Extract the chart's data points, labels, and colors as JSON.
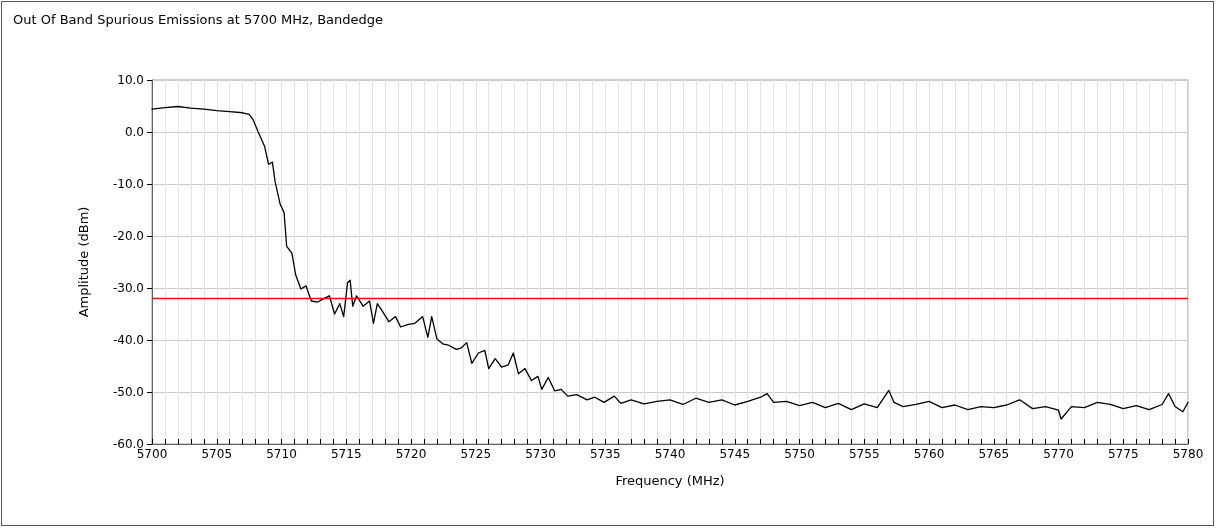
{
  "chart_data": {
    "type": "line",
    "title": "Out Of Band Spurious Emissions at 5700 MHz, Bandedge",
    "xlabel": "Frequency (MHz)",
    "ylabel": "Amplitude (dBm)",
    "series": [
      {
        "color": "#000000",
        "x": [
          5700,
          5701,
          5702,
          5703,
          5704,
          5705,
          5706,
          5707,
          5707.5,
          5707.8,
          5708.2,
          5708.7,
          5709,
          5709.3,
          5709.5,
          5709.9,
          5710.2,
          5710.4,
          5710.8,
          5711.1,
          5711.5,
          5711.9,
          5712.3,
          5712.8,
          5713.3,
          5713.7,
          5714.1,
          5714.5,
          5714.8,
          5715.1,
          5715.3,
          5715.5,
          5715.8,
          5716.3,
          5716.8,
          5717.1,
          5717.4,
          5717.8,
          5718.3,
          5718.8,
          5719.2,
          5719.8,
          5720.3,
          5720.9,
          5721.3,
          5721.6,
          5722,
          5722.5,
          5722.9,
          5723.5,
          5723.9,
          5724.3,
          5724.7,
          5725.2,
          5725.7,
          5726,
          5726.5,
          5727,
          5727.5,
          5727.9,
          5728.3,
          5728.8,
          5729.3,
          5729.8,
          5730.1,
          5730.6,
          5731.1,
          5731.6,
          5732.1,
          5732.8,
          5733.6,
          5734.2,
          5734.9,
          5735.7,
          5736.2,
          5737,
          5738,
          5739,
          5740,
          5741,
          5742,
          5743,
          5744,
          5745,
          5746,
          5747,
          5747.5,
          5748,
          5749,
          5750,
          5751,
          5752,
          5753,
          5754,
          5755,
          5756,
          5756.9,
          5757.3,
          5758,
          5759,
          5760,
          5761,
          5762,
          5763,
          5764,
          5765,
          5766,
          5767,
          5768,
          5769,
          5770,
          5770.2,
          5771,
          5772,
          5773,
          5774,
          5775,
          5776,
          5777,
          5778,
          5778.5,
          5779,
          5779.6,
          5780
        ],
        "values": [
          4.4,
          4.7,
          4.9,
          4.6,
          4.4,
          4.1,
          3.9,
          3.7,
          3.4,
          2.4,
          0,
          -2.8,
          -6.2,
          -5.8,
          -9.5,
          -13.9,
          -15.5,
          -22.0,
          -23.3,
          -27.5,
          -30.2,
          -29.6,
          -32.5,
          -32.7,
          -32.0,
          -31.5,
          -35.0,
          -33.0,
          -35.5,
          -29.0,
          -28.5,
          -33.5,
          -31.5,
          -33.5,
          -32.5,
          -36.8,
          -33.0,
          -34.5,
          -36.5,
          -35.5,
          -37.5,
          -37.0,
          -36.8,
          -35.5,
          -39.5,
          -35.5,
          -39.8,
          -40.8,
          -41.0,
          -41.8,
          -41.5,
          -40.5,
          -44.5,
          -42.5,
          -42.0,
          -45.5,
          -43.6,
          -45.2,
          -44.8,
          -42.5,
          -46.5,
          -45.5,
          -47.8,
          -47.0,
          -49.5,
          -47.2,
          -49.8,
          -49.5,
          -50.8,
          -50.5,
          -51.5,
          -51.0,
          -52.0,
          -50.8,
          -52.2,
          -51.5,
          -52.3,
          -51.8,
          -51.5,
          -52.4,
          -51.2,
          -52.0,
          -51.5,
          -52.5,
          -51.8,
          -51.0,
          -50.3,
          -52.0,
          -51.8,
          -52.6,
          -52.0,
          -53.0,
          -52.2,
          -53.4,
          -52.3,
          -53.0,
          -49.7,
          -52.0,
          -52.8,
          -52.4,
          -51.8,
          -53.0,
          -52.5,
          -53.4,
          -52.8,
          -53.0,
          -52.5,
          -51.5,
          -53.2,
          -52.8,
          -53.5,
          -55.2,
          -52.8,
          -53.0,
          -52.0,
          -52.4,
          -53.2,
          -52.6,
          -53.4,
          -52.4,
          -50.3,
          -52.8,
          -53.8,
          -52.0
        ]
      }
    ],
    "xlim": [
      5700,
      5780
    ],
    "xticks": [
      5700,
      {
        "value": 5701,
        "label": null
      },
      {
        "value": 5702,
        "label": null
      },
      {
        "value": 5703,
        "label": null
      },
      {
        "value": 5704,
        "label": null
      },
      5705,
      {
        "value": 5706,
        "label": null
      },
      {
        "value": 5707,
        "label": null
      },
      {
        "value": 5708,
        "label": null
      },
      {
        "value": 5709,
        "label": null
      },
      5710,
      {
        "value": 5711,
        "label": null
      },
      {
        "value": 5712,
        "label": null
      },
      {
        "value": 5713,
        "label": null
      },
      {
        "value": 5714,
        "label": null
      },
      5715,
      {
        "value": 5716,
        "label": null
      },
      {
        "value": 5717,
        "label": null
      },
      {
        "value": 5718,
        "label": null
      },
      {
        "value": 5719,
        "label": null
      },
      5720,
      {
        "value": 5721,
        "label": null
      },
      {
        "value": 5722,
        "label": null
      },
      {
        "value": 5723,
        "label": null
      },
      {
        "value": 5724,
        "label": null
      },
      5725,
      {
        "value": 5726,
        "label": null
      },
      {
        "value": 5727,
        "label": null
      },
      {
        "value": 5728,
        "label": null
      },
      {
        "value": 5729,
        "label": null
      },
      5730,
      {
        "value": 5731,
        "label": null
      },
      {
        "value": 5732,
        "label": null
      },
      {
        "value": 5733,
        "label": null
      },
      {
        "value": 5734,
        "label": null
      },
      5735,
      {
        "value": 5736,
        "label": null
      },
      {
        "value": 5737,
        "label": null
      },
      {
        "value": 5738,
        "label": null
      },
      {
        "value": 5739,
        "label": null
      },
      5740,
      {
        "value": 5741,
        "label": null
      },
      {
        "value": 5742,
        "label": null
      },
      {
        "value": 5743,
        "label": null
      },
      {
        "value": 5744,
        "label": null
      },
      5745,
      {
        "value": 5746,
        "label": null
      },
      {
        "value": 5747,
        "label": null
      },
      {
        "value": 5748,
        "label": null
      },
      {
        "value": 5749,
        "label": null
      },
      5750,
      {
        "value": 5751,
        "label": null
      },
      {
        "value": 5752,
        "label": null
      },
      {
        "value": 5753,
        "label": null
      },
      {
        "value": 5754,
        "label": null
      },
      5755,
      {
        "value": 5756,
        "label": null
      },
      {
        "value": 5757,
        "label": null
      },
      {
        "value": 5758,
        "label": null
      },
      {
        "value": 5759,
        "label": null
      },
      5760,
      {
        "value": 5761,
        "label": null
      },
      {
        "value": 5762,
        "label": null
      },
      {
        "value": 5763,
        "label": null
      },
      {
        "value": 5764,
        "label": null
      },
      5765,
      {
        "value": 5766,
        "label": null
      },
      {
        "value": 5767,
        "label": null
      },
      {
        "value": 5768,
        "label": null
      },
      {
        "value": 5769,
        "label": null
      },
      5770,
      {
        "value": 5771,
        "label": null
      },
      {
        "value": 5772,
        "label": null
      },
      {
        "value": 5773,
        "label": null
      },
      {
        "value": 5774,
        "label": null
      },
      5775,
      {
        "value": 5776,
        "label": null
      },
      {
        "value": 5777,
        "label": null
      },
      {
        "value": 5778,
        "label": null
      },
      {
        "value": 5779,
        "label": null
      },
      5780
    ],
    "ylim": [
      -60,
      10
    ],
    "yticks": [
      {
        "value": -60,
        "label": "-60.0"
      },
      {
        "value": -50,
        "label": "-50.0"
      },
      {
        "value": -40,
        "label": "-40.0"
      },
      {
        "value": -30,
        "label": "-30.0"
      },
      {
        "value": -20,
        "label": "-20.0"
      },
      {
        "value": -10,
        "label": "-10.0"
      },
      {
        "value": 0,
        "label": "0.0"
      },
      {
        "value": 10,
        "label": "10.0"
      }
    ],
    "ref_lines": [
      {
        "axis": "y",
        "value": -32,
        "color": "#ff0000"
      }
    ],
    "grid": true,
    "marker": "none",
    "line_style": "solid"
  }
}
